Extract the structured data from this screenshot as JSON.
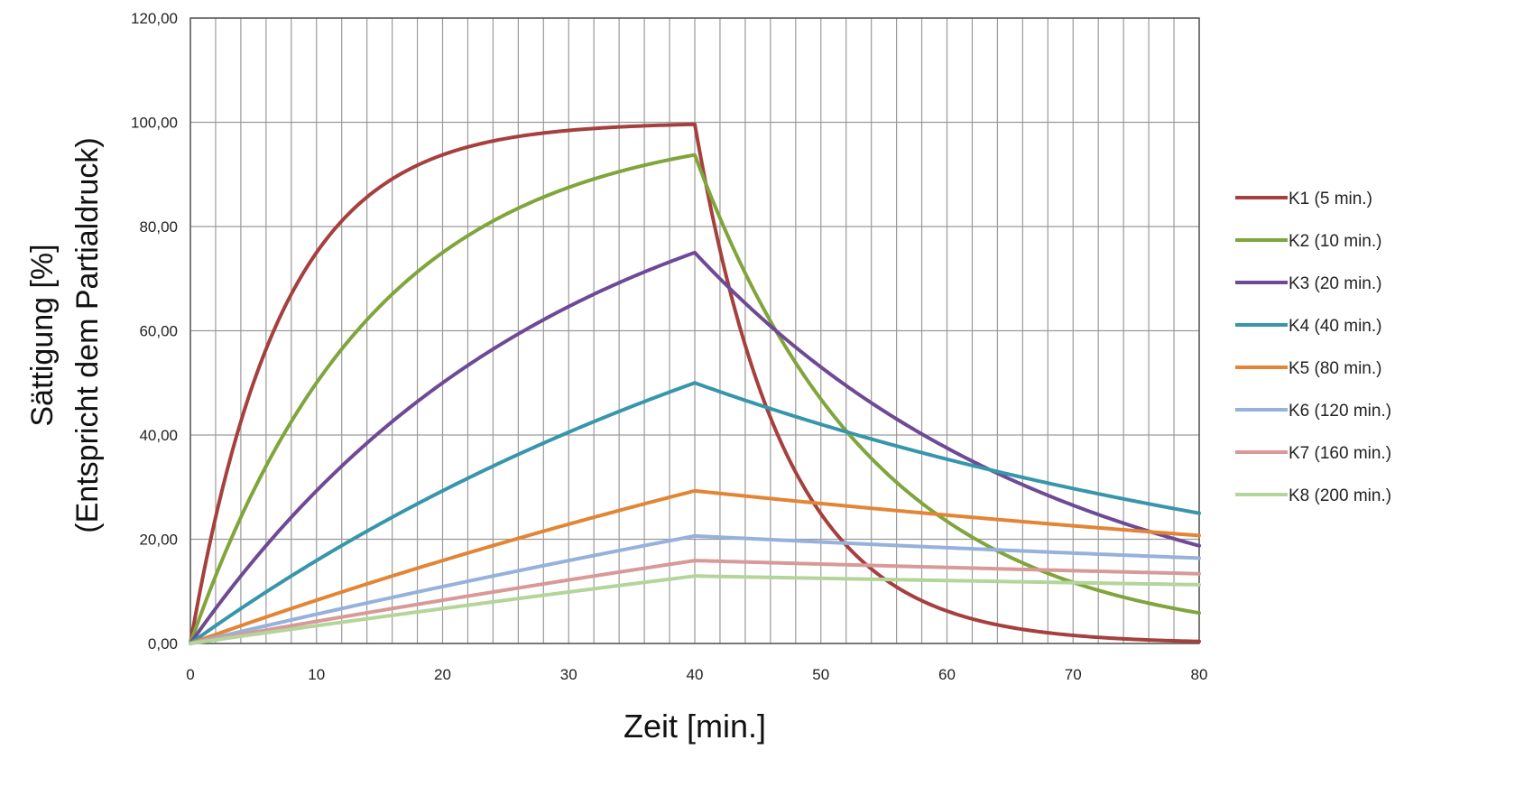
{
  "chart_data": {
    "type": "line",
    "title": "",
    "xlabel": "Zeit [min.]",
    "ylabel_line1": "Sättigung [%]",
    "ylabel_line2": "(Entspricht dem Partialdruck)",
    "xlim": [
      0,
      80
    ],
    "ylim": [
      0,
      120
    ],
    "x_ticks": [
      0,
      10,
      20,
      30,
      40,
      50,
      60,
      70,
      80
    ],
    "x_tick_labels": [
      "0",
      "10",
      "20",
      "30",
      "40",
      "50",
      "60",
      "70",
      "80"
    ],
    "y_ticks": [
      0,
      20,
      40,
      60,
      80,
      100,
      120
    ],
    "y_tick_labels": [
      "0,00",
      "20,00",
      "40,00",
      "60,00",
      "80,00",
      "100,00",
      "120,00"
    ],
    "grid": true,
    "legend_position": "right",
    "model": {
      "saturation_level": 100,
      "phase_switch_minute": 40,
      "end_minute": 80
    },
    "series": [
      {
        "name": "K1 (5 min.)",
        "half_time": 5,
        "color": "#a5403e"
      },
      {
        "name": "K2 (10 min.)",
        "half_time": 10,
        "color": "#7fa53c"
      },
      {
        "name": "K3 (20 min.)",
        "half_time": 20,
        "color": "#6e4a96"
      },
      {
        "name": "K4 (40 min.)",
        "half_time": 40,
        "color": "#3796ab"
      },
      {
        "name": "K5 (80 min.)",
        "half_time": 80,
        "color": "#e28535"
      },
      {
        "name": "K6 (120 min.)",
        "half_time": 120,
        "color": "#95b1dc"
      },
      {
        "name": "K7 (160 min.)",
        "half_time": 160,
        "color": "#d79a98"
      },
      {
        "name": "K8 (200 min.)",
        "half_time": 200,
        "color": "#b4d59a"
      }
    ]
  }
}
